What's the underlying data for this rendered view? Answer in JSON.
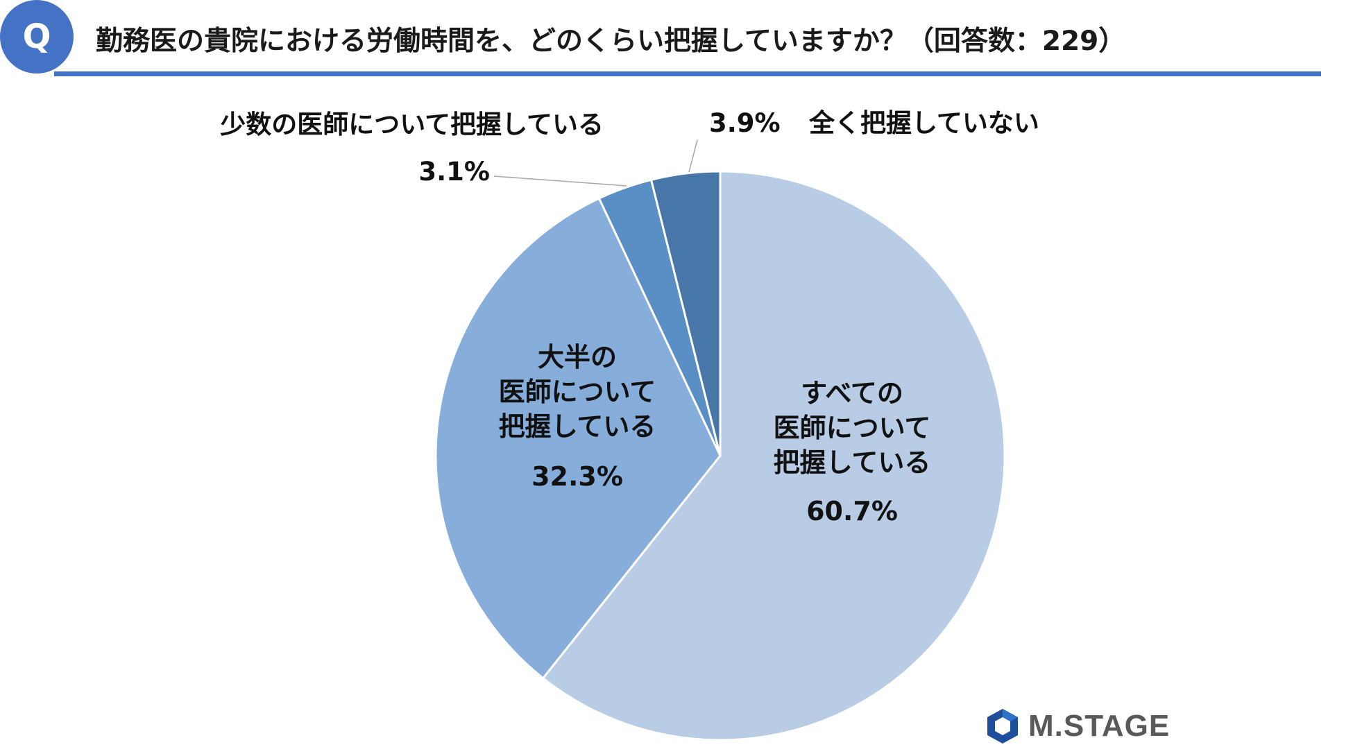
{
  "header": {
    "badge": "Q",
    "title": "勤務医の貴院における労働時間を、どのくらい把握していますか？（回答数：229）"
  },
  "logo": {
    "icon": "hexagon-logo-icon",
    "text": "M.STAGE"
  },
  "chart_data": {
    "type": "pie",
    "start_angle_deg": 0,
    "direction": "clockwise",
    "slices": [
      {
        "label_lines": [
          "すべての",
          "医師について",
          "把握している"
        ],
        "value": 60.7,
        "value_label": "60.7%",
        "color": "#b8cce6",
        "label_position": "inside"
      },
      {
        "label_lines": [
          "大半の",
          "医師について",
          "把握している"
        ],
        "value": 32.3,
        "value_label": "32.3%",
        "color": "#87aedb",
        "label_position": "inside"
      },
      {
        "label_lines": [
          "少数の医師について把握している"
        ],
        "value": 3.1,
        "value_label": "3.1%",
        "color": "#5a8fc6",
        "label_position": "outside"
      },
      {
        "label_lines": [
          "全く把握していない"
        ],
        "value": 3.9,
        "value_label": "3.9%",
        "color": "#4776a8",
        "label_position": "outside"
      }
    ]
  }
}
